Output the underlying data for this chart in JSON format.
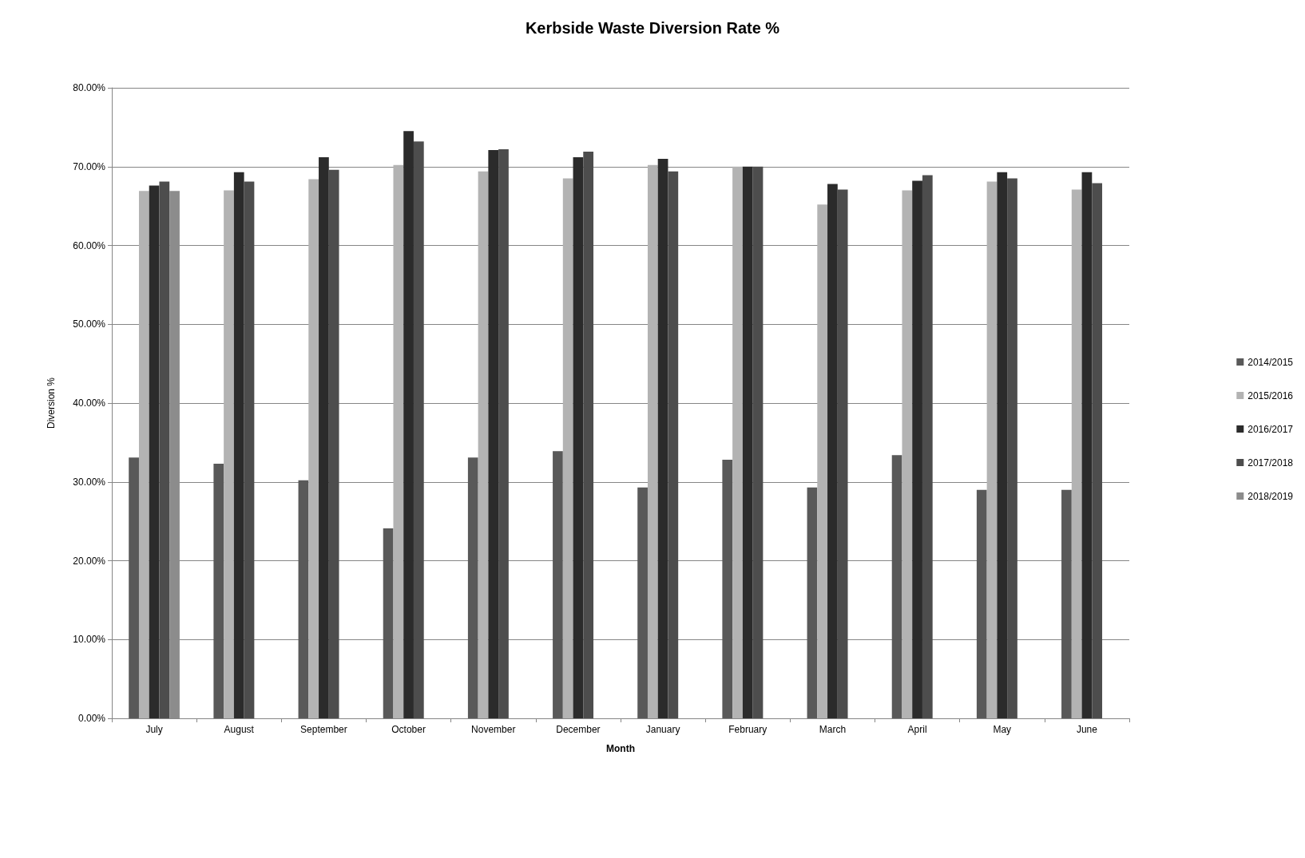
{
  "chart_data": {
    "type": "bar",
    "title": "Kerbside Waste Diversion Rate %",
    "xlabel": "Month",
    "ylabel": "Diversion %",
    "categories": [
      "July",
      "August",
      "September",
      "October",
      "November",
      "December",
      "January",
      "February",
      "March",
      "April",
      "May",
      "June"
    ],
    "series": [
      {
        "name": "2014/2015",
        "color": "#595959",
        "values": [
          33.1,
          32.3,
          30.2,
          24.1,
          33.1,
          33.9,
          29.3,
          32.8,
          29.3,
          33.4,
          29.0,
          29.0
        ]
      },
      {
        "name": "2015/2016",
        "color": "#b3b3b3",
        "values": [
          66.9,
          67.0,
          68.4,
          70.2,
          69.4,
          68.5,
          70.2,
          70.0,
          65.2,
          67.0,
          68.1,
          67.1
        ]
      },
      {
        "name": "2016/2017",
        "color": "#2b2b2b",
        "values": [
          67.6,
          69.3,
          71.2,
          74.5,
          72.1,
          71.2,
          71.0,
          70.0,
          67.8,
          68.2,
          69.3,
          69.3
        ]
      },
      {
        "name": "2017/2018",
        "color": "#4d4d4d",
        "values": [
          68.1,
          68.1,
          69.6,
          73.2,
          72.2,
          71.9,
          69.4,
          70.0,
          67.1,
          68.9,
          68.5,
          67.9
        ]
      },
      {
        "name": "2018/2019",
        "color": "#8c8c8c",
        "values": [
          66.9,
          null,
          null,
          null,
          null,
          null,
          null,
          null,
          null,
          null,
          null,
          null
        ]
      }
    ],
    "ylim": [
      0,
      80
    ],
    "yticks": [
      {
        "value": 0,
        "label": "0.00%"
      },
      {
        "value": 10,
        "label": "10.00%"
      },
      {
        "value": 20,
        "label": "20.00%"
      },
      {
        "value": 30,
        "label": "30.00%"
      },
      {
        "value": 40,
        "label": "40.00%"
      },
      {
        "value": 50,
        "label": "50.00%"
      },
      {
        "value": 60,
        "label": "60.00%"
      },
      {
        "value": 70,
        "label": "70.00%"
      },
      {
        "value": 80,
        "label": "80.00%"
      }
    ],
    "grid": "y",
    "legend": "right"
  }
}
